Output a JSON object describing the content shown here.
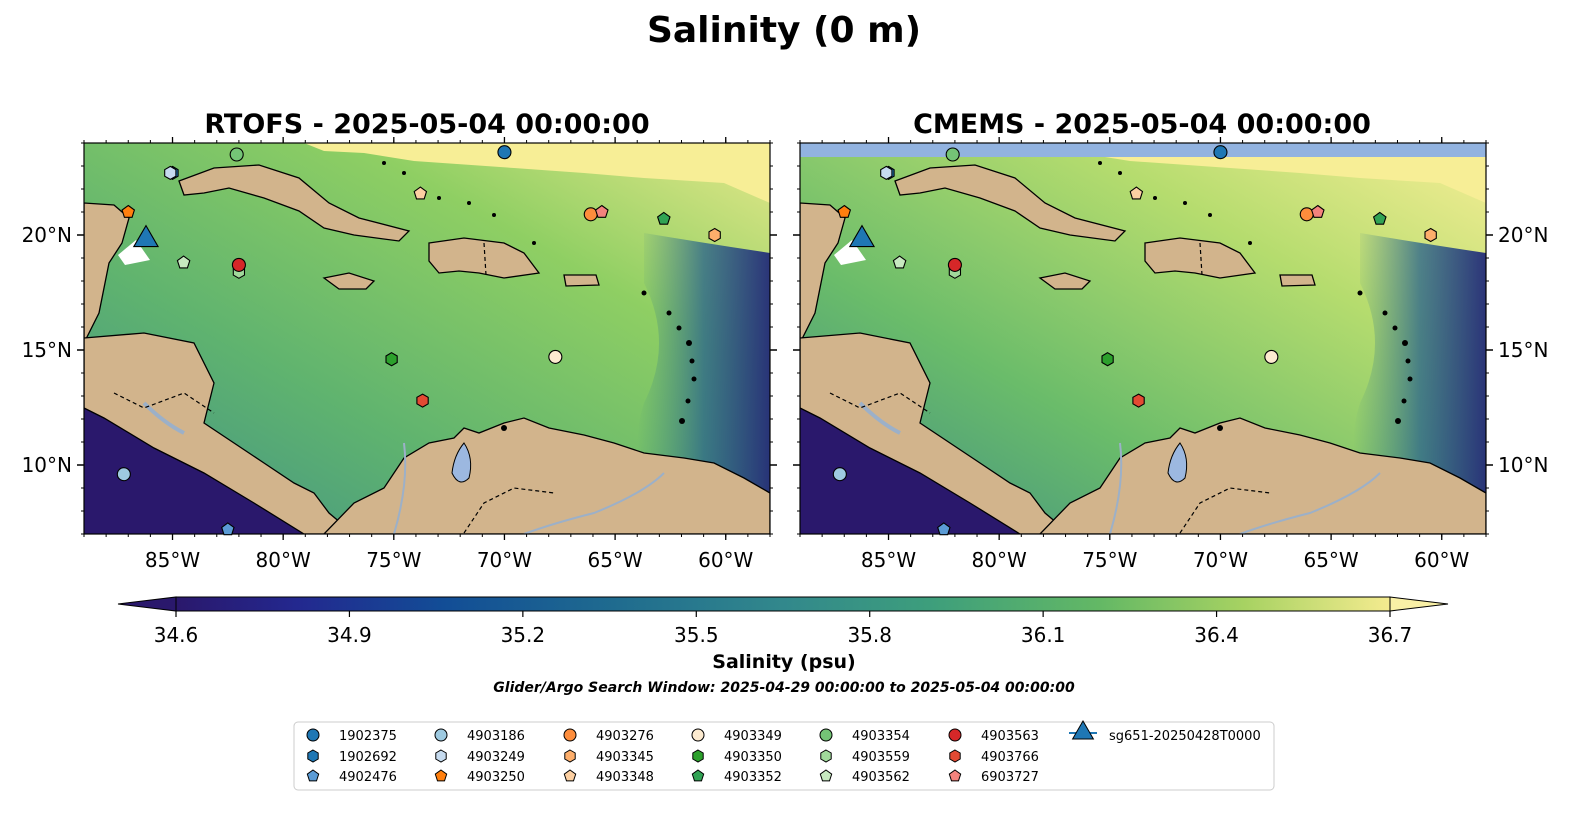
{
  "suptitle": "Salinity (0 m)",
  "chart_data": {
    "type": "heatmap",
    "variable": "Salinity",
    "units": "psu",
    "panels": [
      {
        "title": "RTOFS - 2025-05-04 00:00:00",
        "model": "RTOFS"
      },
      {
        "title": "CMEMS - 2025-05-04 00:00:00",
        "model": "CMEMS"
      }
    ],
    "lon_range": [
      -89,
      -58
    ],
    "lat_range": [
      7,
      24
    ],
    "lon_ticks": [
      {
        "value": -85,
        "label": "85°W"
      },
      {
        "value": -80,
        "label": "80°W"
      },
      {
        "value": -75,
        "label": "75°W"
      },
      {
        "value": -70,
        "label": "70°W"
      },
      {
        "value": -65,
        "label": "65°W"
      },
      {
        "value": -60,
        "label": "60°W"
      }
    ],
    "lat_ticks": [
      {
        "value": 20,
        "label": "20°N"
      },
      {
        "value": 15,
        "label": "15°N"
      },
      {
        "value": 10,
        "label": "10°N"
      }
    ],
    "colorbar": {
      "label": "Salinity (psu)",
      "range": [
        34.6,
        36.7
      ],
      "ticks": [
        "34.6",
        "34.9",
        "35.2",
        "35.5",
        "35.8",
        "36.1",
        "36.4",
        "36.7"
      ],
      "extend": "both",
      "colormap": "haline"
    },
    "search_window_text": "Glider/Argo Search Window: 2025-04-29 00:00:00 to 2025-05-04 00:00:00",
    "observations": [
      {
        "id": "1902375",
        "marker": "circle",
        "color": "#1f77b4",
        "lon": -70.0,
        "lat": 23.6
      },
      {
        "id": "1902692",
        "marker": "hexagon",
        "color": "#1f77b4",
        "lon": -85.0,
        "lat": 22.7
      },
      {
        "id": "4902476",
        "marker": "pentagon",
        "color": "#5b9bd5",
        "lon": -82.5,
        "lat": 7.2
      },
      {
        "id": "4903186",
        "marker": "circle",
        "color": "#9ecae1",
        "lon": -87.2,
        "lat": 9.6
      },
      {
        "id": "4903249",
        "marker": "hexagon",
        "color": "#c6dbef",
        "lon": -85.1,
        "lat": 22.7
      },
      {
        "id": "4903250",
        "marker": "pentagon",
        "color": "#ff7f0e",
        "lon": -87.0,
        "lat": 21.0
      },
      {
        "id": "4903276",
        "marker": "circle",
        "color": "#fd8d3c",
        "lon": -66.1,
        "lat": 20.9
      },
      {
        "id": "4903345",
        "marker": "hexagon",
        "color": "#fdae6b",
        "lon": -60.5,
        "lat": 20.0
      },
      {
        "id": "4903348",
        "marker": "pentagon",
        "color": "#fdd0a2",
        "lon": -73.8,
        "lat": 21.8
      },
      {
        "id": "4903349",
        "marker": "circle",
        "color": "#fdebd0",
        "lon": -67.7,
        "lat": 14.7
      },
      {
        "id": "4903350",
        "marker": "hexagon",
        "color": "#2ca02c",
        "lon": -75.1,
        "lat": 14.6
      },
      {
        "id": "4903352",
        "marker": "pentagon",
        "color": "#31a354",
        "lon": -62.8,
        "lat": 20.7
      },
      {
        "id": "4903354",
        "marker": "circle",
        "color": "#74c476",
        "lon": -82.1,
        "lat": 23.5
      },
      {
        "id": "4903559",
        "marker": "hexagon",
        "color": "#a1d99b",
        "lon": -82.0,
        "lat": 18.4
      },
      {
        "id": "4903562",
        "marker": "pentagon",
        "color": "#c7e9c0",
        "lon": -84.5,
        "lat": 18.8
      },
      {
        "id": "4903563",
        "marker": "circle",
        "color": "#d62728",
        "lon": -82.0,
        "lat": 18.7
      },
      {
        "id": "4903766",
        "marker": "hexagon",
        "color": "#e34a33",
        "lon": -73.7,
        "lat": 12.8
      },
      {
        "id": "6903727",
        "marker": "pentagon",
        "color": "#f4837d",
        "lon": -65.6,
        "lat": 21.0
      },
      {
        "id": "sg651-20250428T0000",
        "marker": "triangle",
        "color": "#1f77b4",
        "lon": -86.2,
        "lat": 19.8
      }
    ]
  }
}
